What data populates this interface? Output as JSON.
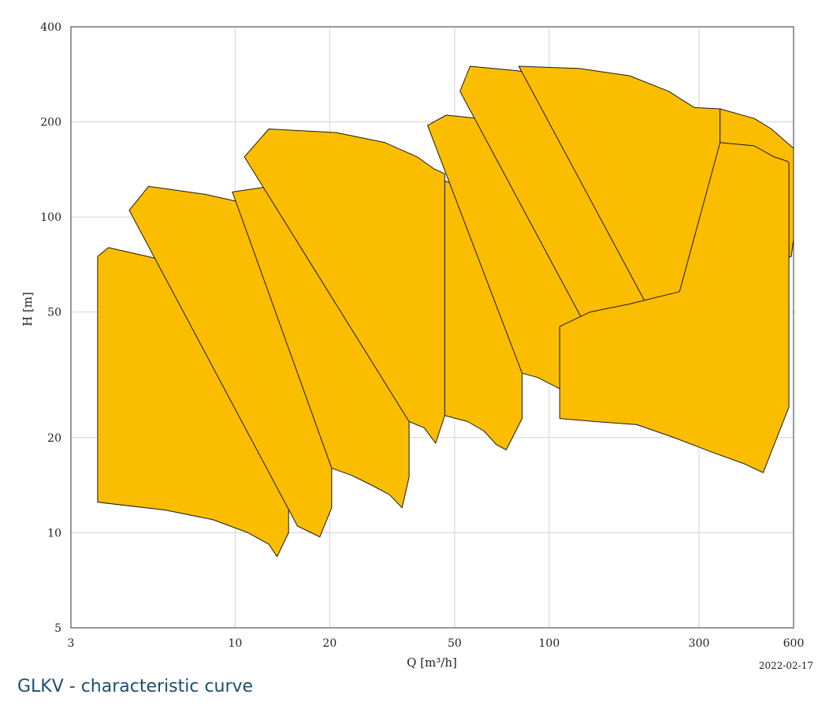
{
  "chart_data": {
    "type": "area",
    "xlabel": "Q [m³/h]",
    "ylabel": "H [m]",
    "x_scale": "log",
    "y_scale": "log",
    "xlim": [
      3,
      600
    ],
    "ylim": [
      5,
      400
    ],
    "x_ticks": [
      3,
      10,
      20,
      50,
      100,
      300,
      600
    ],
    "y_ticks": [
      5,
      10,
      20,
      50,
      100,
      200,
      400
    ],
    "grid": true,
    "fill_color": "#fbbd00",
    "stroke_color": "#1a1a1a",
    "series": [
      {
        "top": [
          [
            3.65,
            75
          ],
          [
            3.95,
            80
          ],
          [
            6.3,
            72
          ],
          [
            9,
            66
          ],
          [
            11.5,
            58
          ],
          [
            13.5,
            52
          ],
          [
            14.8,
            48
          ]
        ],
        "bottom": [
          [
            3.65,
            12.5
          ],
          [
            6,
            11.8
          ],
          [
            8.5,
            11
          ],
          [
            11,
            10
          ],
          [
            12.8,
            9.2
          ],
          [
            13.6,
            8.4
          ],
          [
            14.8,
            10
          ]
        ]
      },
      {
        "top": [
          [
            4.6,
            105
          ],
          [
            5.3,
            125
          ],
          [
            8,
            118
          ],
          [
            11,
            110
          ],
          [
            14.5,
            100
          ],
          [
            17.5,
            87
          ],
          [
            20.3,
            82
          ]
        ],
        "bottom": [
          [
            15.8,
            10.5
          ],
          [
            17.5,
            10
          ],
          [
            18.6,
            9.7
          ],
          [
            20.3,
            12
          ]
        ]
      },
      {
        "top": [
          [
            9.8,
            120
          ],
          [
            12.2,
            124
          ],
          [
            16,
            115
          ],
          [
            22,
            100
          ],
          [
            28,
            87
          ],
          [
            33,
            78
          ],
          [
            35.8,
            76
          ]
        ],
        "bottom": [
          [
            20.3,
            16
          ],
          [
            23.5,
            15.2
          ],
          [
            27,
            14.2
          ],
          [
            31,
            13.2
          ],
          [
            34,
            12
          ],
          [
            35.8,
            15
          ]
        ]
      },
      {
        "top": [
          [
            10.7,
            155
          ],
          [
            12.8,
            190
          ],
          [
            21,
            185
          ],
          [
            30,
            172
          ],
          [
            38,
            155
          ],
          [
            43,
            142
          ],
          [
            46.5,
            137
          ]
        ],
        "bottom": [
          [
            35.8,
            22.5
          ],
          [
            40,
            21.5
          ],
          [
            43.5,
            19.2
          ],
          [
            46.5,
            23.5
          ]
        ]
      },
      {
        "top": [
          [
            46.5,
            130
          ],
          [
            52,
            125
          ],
          [
            62,
            110
          ],
          [
            72,
            100
          ],
          [
            78,
            95
          ],
          [
            82,
            93
          ]
        ],
        "bottom": [
          [
            46.5,
            23.5
          ],
          [
            55,
            22.5
          ],
          [
            62,
            21
          ],
          [
            68,
            19
          ],
          [
            73,
            18.3
          ],
          [
            82,
            23
          ]
        ]
      },
      {
        "top": [
          [
            41,
            195
          ],
          [
            47,
            210
          ],
          [
            60,
            205
          ],
          [
            80,
            192
          ],
          [
            100,
            172
          ],
          [
            120,
            152
          ],
          [
            134,
            145
          ]
        ],
        "bottom": [
          [
            82,
            32
          ],
          [
            92,
            31
          ],
          [
            105,
            29
          ],
          [
            116,
            27.5
          ],
          [
            123,
            26.5
          ],
          [
            134,
            32
          ]
        ]
      },
      {
        "top": [
          [
            52,
            250
          ],
          [
            56,
            300
          ],
          [
            80,
            290
          ],
          [
            110,
            270
          ],
          [
            150,
            245
          ],
          [
            190,
            210
          ],
          [
            215,
            198
          ]
        ],
        "bottom": [
          [
            128,
            47
          ],
          [
            145,
            45
          ],
          [
            165,
            42
          ],
          [
            182,
            39.5
          ],
          [
            200,
            42
          ],
          [
            215,
            50
          ]
        ]
      },
      {
        "top": [
          [
            80,
            300
          ],
          [
            125,
            295
          ],
          [
            180,
            280
          ],
          [
            240,
            250
          ],
          [
            290,
            222
          ],
          [
            350,
            220
          ]
        ],
        "bottom": [
          [
            215,
            48
          ],
          [
            240,
            46
          ],
          [
            265,
            43
          ],
          [
            288,
            41
          ],
          [
            330,
            56
          ],
          [
            350,
            62
          ]
        ]
      },
      {
        "top": [
          [
            350,
            220
          ],
          [
            450,
            205
          ],
          [
            510,
            190
          ],
          [
            560,
            175
          ],
          [
            600,
            165
          ]
        ],
        "bottom": [
          [
            350,
            62
          ],
          [
            590,
            75
          ],
          [
            600,
            85
          ]
        ]
      },
      {
        "top": [
          [
            108,
            45
          ],
          [
            135,
            50
          ],
          [
            180,
            53
          ],
          [
            260,
            58
          ],
          [
            350,
            172
          ],
          [
            450,
            168
          ],
          [
            520,
            155
          ],
          [
            575,
            150
          ],
          [
            580,
            148
          ]
        ],
        "bottom": [
          [
            108,
            23
          ],
          [
            140,
            22.5
          ],
          [
            190,
            22
          ],
          [
            250,
            20
          ],
          [
            330,
            18
          ],
          [
            420,
            16.5
          ],
          [
            480,
            15.5
          ],
          [
            580,
            25
          ]
        ]
      }
    ]
  },
  "footer": {
    "date": "2022-02-17",
    "caption": "GLKV - characteristic curve"
  }
}
